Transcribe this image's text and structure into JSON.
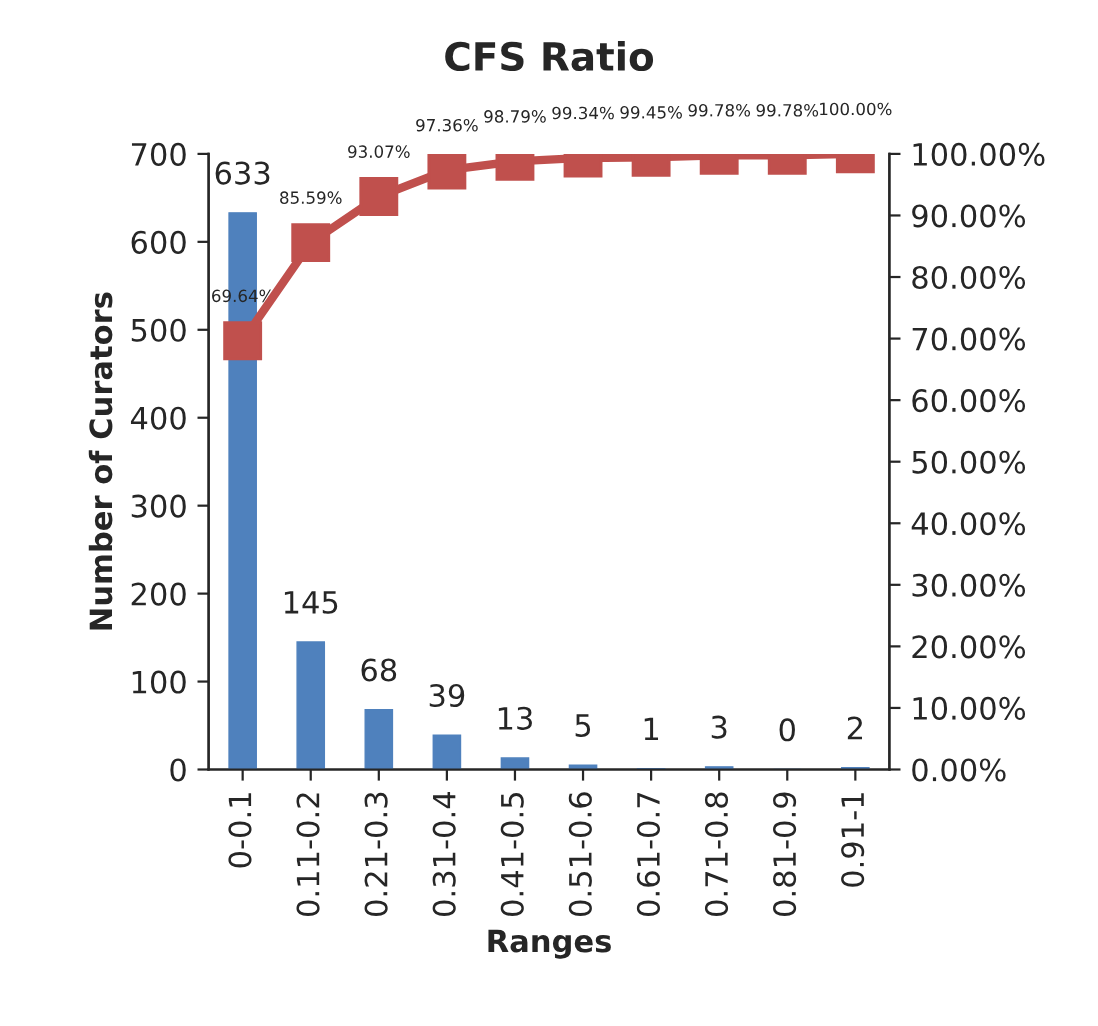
{
  "chart_data": {
    "type": "bar",
    "title": "CFS Ratio",
    "xlabel": "Ranges",
    "ylabel": "Number of Curators",
    "categories": [
      "0-0.1",
      "0.11-0.2",
      "0.21-0.3",
      "0.31-0.4",
      "0.41-0.5",
      "0.51-0.6",
      "0.61-0.7",
      "0.71-0.8",
      "0.81-0.9",
      "0.91-1"
    ],
    "series": [
      {
        "color": "#4f81bd",
        "values": [
          633,
          145,
          68,
          39,
          13,
          5,
          1,
          3,
          0,
          2
        ],
        "value_labels": [
          "633",
          "145",
          "68",
          "39",
          "13",
          "5",
          "1",
          "3",
          "0",
          "2"
        ]
      },
      {
        "type": "line",
        "axis": "y2",
        "color": "#c0504d",
        "marker": "square",
        "line_style": "solid",
        "values": [
          69.64,
          85.59,
          93.07,
          97.36,
          98.79,
          99.34,
          99.45,
          99.78,
          99.78,
          100.0
        ],
        "value_labels": [
          "69.64%",
          "85.59%",
          "93.07%",
          "97.36%",
          "98.79%",
          "99.34%",
          "99.45%",
          "99.78%",
          "99.78%",
          "100.00%"
        ]
      }
    ],
    "ylim": [
      0,
      700
    ],
    "yticks": [
      0,
      100,
      200,
      300,
      400,
      500,
      600,
      700
    ],
    "y2lim": [
      0,
      100
    ],
    "y2ticks": [
      {
        "value": 0,
        "label": "0.00%"
      },
      {
        "value": 10,
        "label": "10.00%"
      },
      {
        "value": 20,
        "label": "20.00%"
      },
      {
        "value": 30,
        "label": "30.00%"
      },
      {
        "value": 40,
        "label": "40.00%"
      },
      {
        "value": 50,
        "label": "50.00%"
      },
      {
        "value": 60,
        "label": "60.00%"
      },
      {
        "value": 70,
        "label": "70.00%"
      },
      {
        "value": 80,
        "label": "80.00%"
      },
      {
        "value": 90,
        "label": "90.00%"
      },
      {
        "value": 100,
        "label": "100.00%"
      }
    ],
    "grid": false,
    "legend": false
  }
}
